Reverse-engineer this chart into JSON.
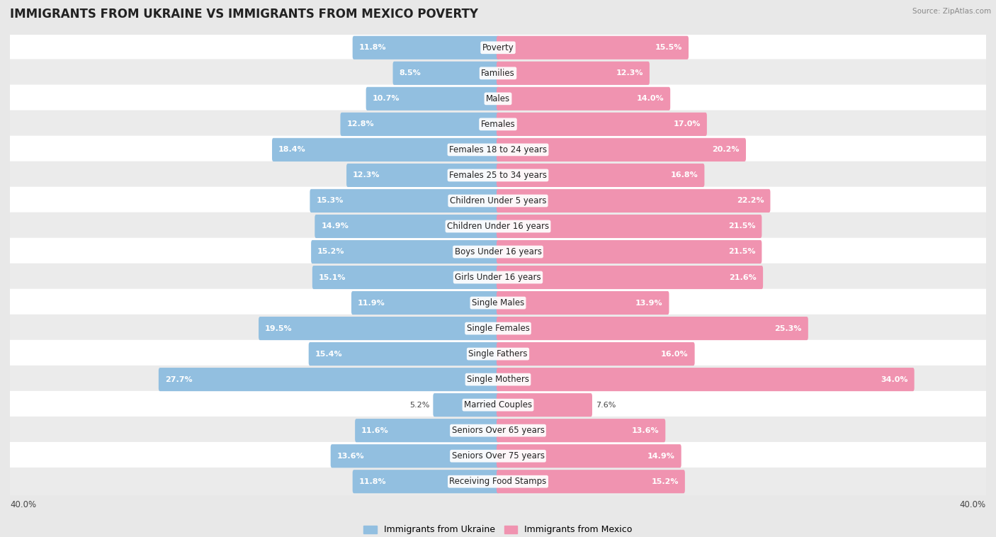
{
  "title": "IMMIGRANTS FROM UKRAINE VS IMMIGRANTS FROM MEXICO POVERTY",
  "source": "Source: ZipAtlas.com",
  "categories": [
    "Poverty",
    "Families",
    "Males",
    "Females",
    "Females 18 to 24 years",
    "Females 25 to 34 years",
    "Children Under 5 years",
    "Children Under 16 years",
    "Boys Under 16 years",
    "Girls Under 16 years",
    "Single Males",
    "Single Females",
    "Single Fathers",
    "Single Mothers",
    "Married Couples",
    "Seniors Over 65 years",
    "Seniors Over 75 years",
    "Receiving Food Stamps"
  ],
  "ukraine_values": [
    11.8,
    8.5,
    10.7,
    12.8,
    18.4,
    12.3,
    15.3,
    14.9,
    15.2,
    15.1,
    11.9,
    19.5,
    15.4,
    27.7,
    5.2,
    11.6,
    13.6,
    11.8
  ],
  "mexico_values": [
    15.5,
    12.3,
    14.0,
    17.0,
    20.2,
    16.8,
    22.2,
    21.5,
    21.5,
    21.6,
    13.9,
    25.3,
    16.0,
    34.0,
    7.6,
    13.6,
    14.9,
    15.2
  ],
  "ukraine_color": "#92bfe0",
  "mexico_color": "#f093b0",
  "axis_max": 40.0,
  "background_color": "#e8e8e8",
  "row_color_even": "#ffffff",
  "row_color_odd": "#ebebeb",
  "bar_height": 0.68,
  "title_fontsize": 12,
  "label_fontsize": 8.5,
  "value_fontsize": 8.0,
  "legend_label_ukraine": "Immigrants from Ukraine",
  "legend_label_mexico": "Immigrants from Mexico"
}
